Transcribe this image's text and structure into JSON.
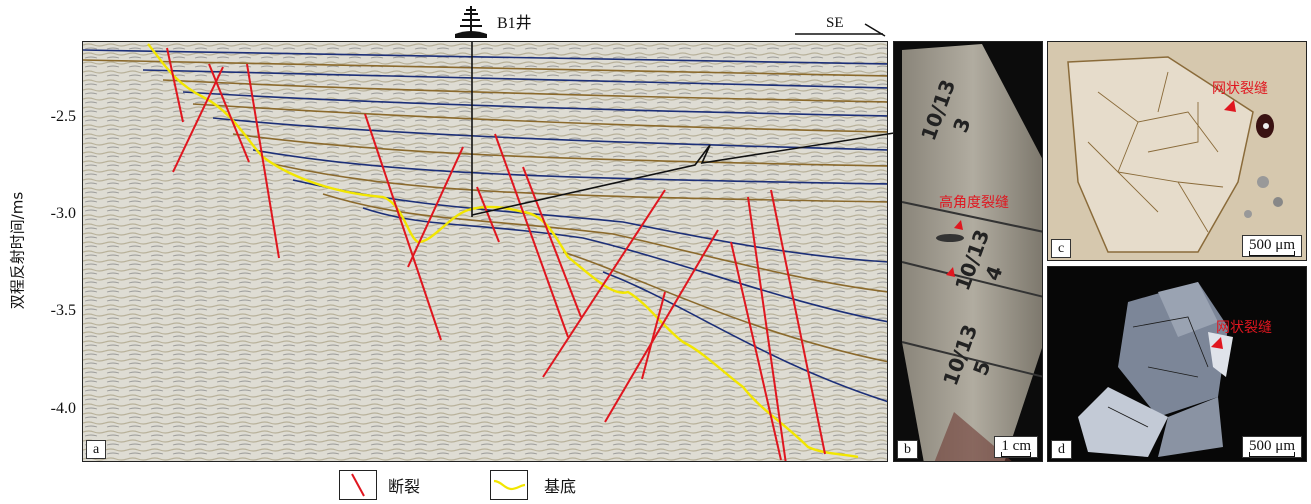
{
  "figure": {
    "well_label": "B1井",
    "direction_label": "SE",
    "y_axis_label": "双程反射时间/ms",
    "y_ticks": [
      "-2.5",
      "-3.0",
      "-3.5",
      "-4.0"
    ],
    "panels": {
      "a": "a",
      "b": "b",
      "c": "c",
      "d": "d"
    },
    "core_annotation": "高角度裂缝",
    "net_fracture_c": "网状裂缝",
    "net_fracture_d": "网状裂缝",
    "scale_b": "1 cm",
    "scale_c": "500 μm",
    "scale_d": "500 μm",
    "core_marks": [
      "10/13",
      "3",
      "10/13",
      "4",
      "10/13",
      "5"
    ]
  },
  "legend": {
    "fault_label": "断裂",
    "basement_label": "基底"
  },
  "colors": {
    "fault": "#e0161f",
    "basement": "#f2e600",
    "seismic_bg": "#dcdad0",
    "reflector_dark": "#1c2f78",
    "reflector_brown": "#8b6a2c"
  }
}
